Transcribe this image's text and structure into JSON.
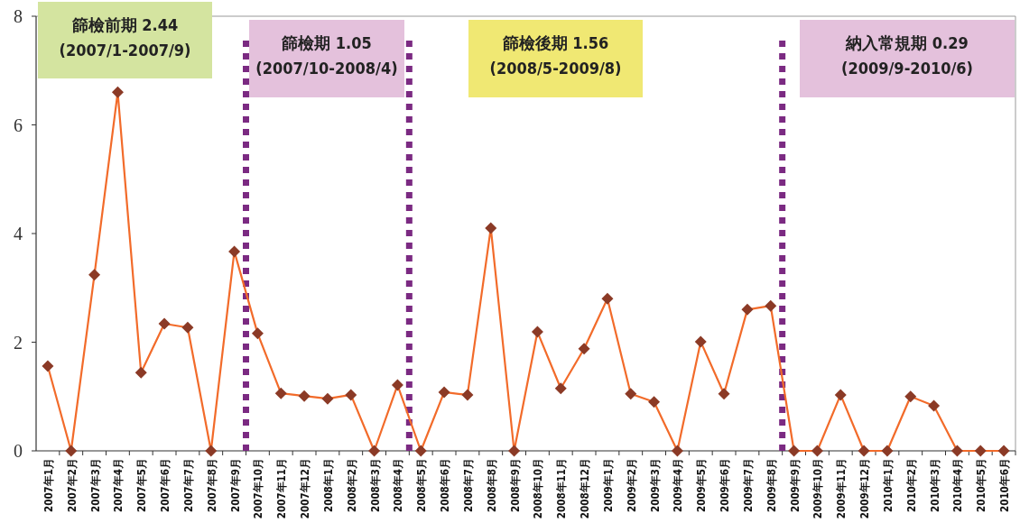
{
  "chart_data": {
    "type": "line",
    "categories": [
      "2007年1月",
      "2007年2月",
      "2007年3月",
      "2007年4月",
      "2007年5月",
      "2007年6月",
      "2007年7月",
      "2007年8月",
      "2007年9月",
      "2007年10月",
      "2007年11月",
      "2007年12月",
      "2008年1月",
      "2008年2月",
      "2008年3月",
      "2008年4月",
      "2008年5月",
      "2008年6月",
      "2008年7月",
      "2008年8月",
      "2008年9月",
      "2008年10月",
      "2008年11月",
      "2008年12月",
      "2009年1月",
      "2009年2月",
      "2009年3月",
      "2009年4月",
      "2009年5月",
      "2009年6月",
      "2009年7月",
      "2009年8月",
      "2009年9月",
      "2009年10月",
      "2009年11月",
      "2009年12月",
      "2010年1月",
      "2010年2月",
      "2010年3月",
      "2010年4月",
      "2010年5月",
      "2010年6月"
    ],
    "series": [
      {
        "color": "#f26b2a",
        "values": [
          1.56,
          0,
          3.24,
          6.6,
          1.44,
          2.34,
          2.27,
          0,
          3.67,
          2.16,
          1.06,
          1.01,
          0.96,
          1.03,
          0,
          1.21,
          0,
          1.08,
          1.03,
          4.1,
          0,
          2.19,
          1.15,
          1.88,
          2.8,
          1.05,
          0.9,
          0,
          2.01,
          1.05,
          2.6,
          2.67,
          0,
          0,
          1.03,
          0,
          0,
          1.0,
          0.83,
          0,
          0,
          0
        ]
      }
    ],
    "ylim": [
      0,
      8
    ],
    "yticks": [
      0,
      2,
      4,
      6,
      8
    ],
    "marker": "diamond",
    "grid": false,
    "annotations": [
      "篩檢前期 2.44",
      "(2007/1-2007/9)",
      "篩檢期 1.05",
      "(2007/10-2008/4)",
      "篩檢後期 1.56",
      "(2008/5-2009/8)",
      "納入常規期 0.29",
      "(2009/9-2010/6)"
    ]
  }
}
